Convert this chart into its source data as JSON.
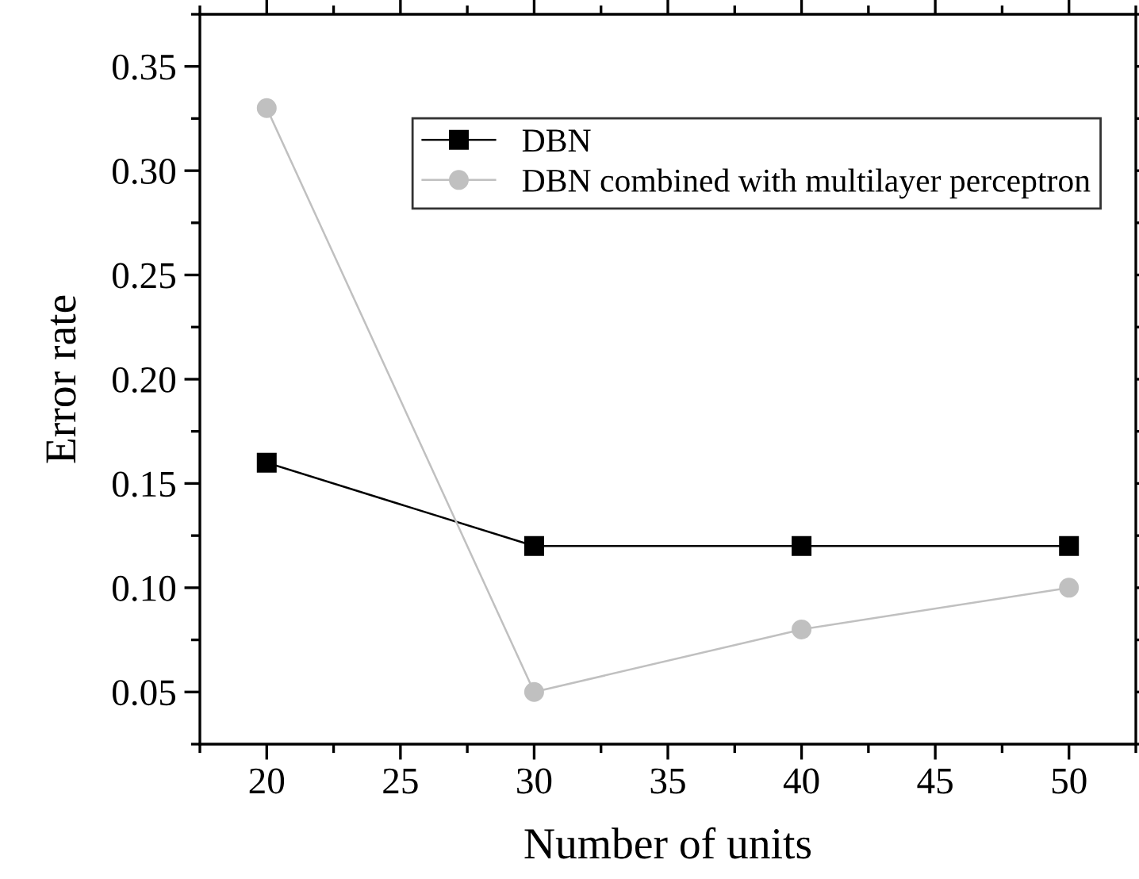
{
  "chart_data": {
    "type": "line",
    "xlabel": "Number of units",
    "ylabel": "Error rate",
    "x": [
      20,
      30,
      40,
      50
    ],
    "series": [
      {
        "name": "DBN",
        "color": "#000000",
        "marker": "square",
        "values": [
          0.16,
          0.12,
          0.12,
          0.12
        ]
      },
      {
        "name": "DBN combined with multilayer perceptron",
        "color": "#c0c0c0",
        "marker": "circle",
        "values": [
          0.33,
          0.05,
          0.08,
          0.1
        ]
      }
    ],
    "xlim": [
      17.5,
      52.5
    ],
    "xticks": [
      20,
      25,
      30,
      35,
      40,
      45,
      50
    ],
    "ylim": [
      0.025,
      0.375
    ],
    "yticks": [
      {
        "value": 0.05,
        "label": "0.05"
      },
      {
        "value": 0.1,
        "label": "0.10"
      },
      {
        "value": 0.15,
        "label": "0.15"
      },
      {
        "value": 0.2,
        "label": "0.20"
      },
      {
        "value": 0.25,
        "label": "0.25"
      },
      {
        "value": 0.3,
        "label": "0.30"
      },
      {
        "value": 0.35,
        "label": "0.35"
      }
    ],
    "grid": false,
    "legend": "top right",
    "line_style": "solid"
  }
}
